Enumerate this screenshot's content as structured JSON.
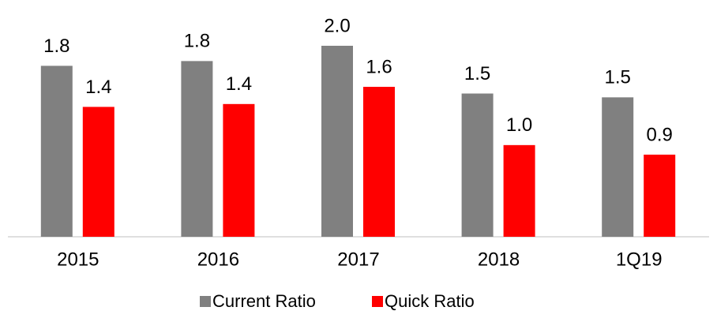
{
  "chart_data": {
    "type": "bar",
    "categories": [
      "2015",
      "2016",
      "2017",
      "2018",
      "1Q19"
    ],
    "series": [
      {
        "name": "Current Ratio",
        "color": "#808080",
        "values": [
          1.79,
          1.84,
          2.0,
          1.5,
          1.46
        ],
        "value_labels": [
          "1.8",
          "1.8",
          "2.0",
          "1.5",
          "1.5"
        ]
      },
      {
        "name": "Quick Ratio",
        "color": "#ff0000",
        "values": [
          1.36,
          1.39,
          1.57,
          0.96,
          0.86
        ],
        "value_labels": [
          "1.4",
          "1.4",
          "1.6",
          "1.0",
          "0.9"
        ]
      }
    ],
    "legend": "bottom"
  }
}
